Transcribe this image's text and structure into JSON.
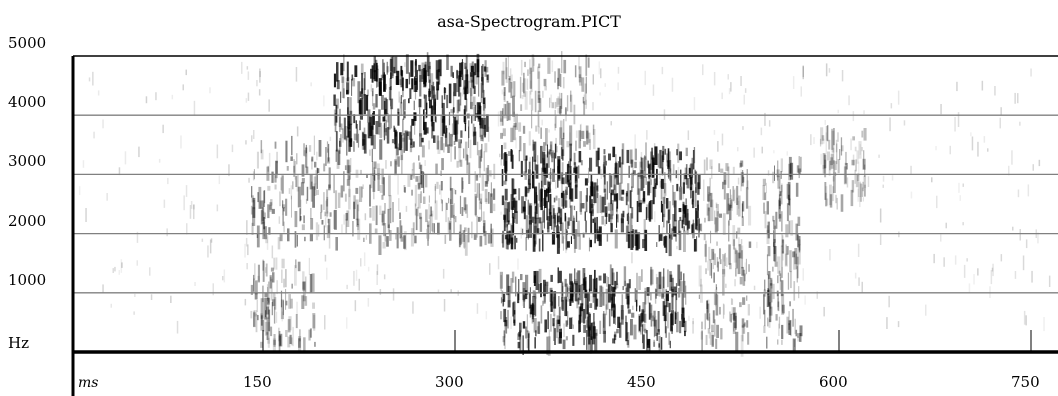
{
  "chart_data": {
    "type": "heatmap",
    "title": "asa-Spectrogram.PICT",
    "y_unit_label": "Hz",
    "x_unit_label": "ms",
    "ylim": [
      0,
      5000
    ],
    "y_ticks": [
      "1000",
      "2000",
      "3000",
      "4000",
      "5000"
    ],
    "y_tick_values": [
      1000,
      2000,
      3000,
      4000,
      5000
    ],
    "x_ticks": [
      "150",
      "300",
      "450",
      "600",
      "750"
    ],
    "x_tick_values": [
      150,
      300,
      450,
      600,
      750
    ],
    "xlim": [
      0,
      765
    ],
    "grid": true,
    "colors": {
      "ink": "#000000",
      "grid": "#808080",
      "background": "#ffffff"
    },
    "energy_regions": [
      {
        "t": [
          205,
          325
        ],
        "f": [
          3500,
          4900
        ],
        "level": 0.9
      },
      {
        "t": [
          140,
          330
        ],
        "f": [
          1800,
          3500
        ],
        "level": 0.5
      },
      {
        "t": [
          140,
          190
        ],
        "f": [
          100,
          1500
        ],
        "level": 0.45
      },
      {
        "t": [
          335,
          490
        ],
        "f": [
          1800,
          3400
        ],
        "level": 0.9
      },
      {
        "t": [
          335,
          480
        ],
        "f": [
          100,
          1300
        ],
        "level": 0.85
      },
      {
        "t": [
          335,
          410
        ],
        "f": [
          3400,
          4900
        ],
        "level": 0.4
      },
      {
        "t": [
          490,
          530
        ],
        "f": [
          100,
          3200
        ],
        "level": 0.45
      },
      {
        "t": [
          540,
          570
        ],
        "f": [
          100,
          3200
        ],
        "level": 0.5
      },
      {
        "t": [
          585,
          620
        ],
        "f": [
          2500,
          3700
        ],
        "level": 0.35
      }
    ]
  }
}
